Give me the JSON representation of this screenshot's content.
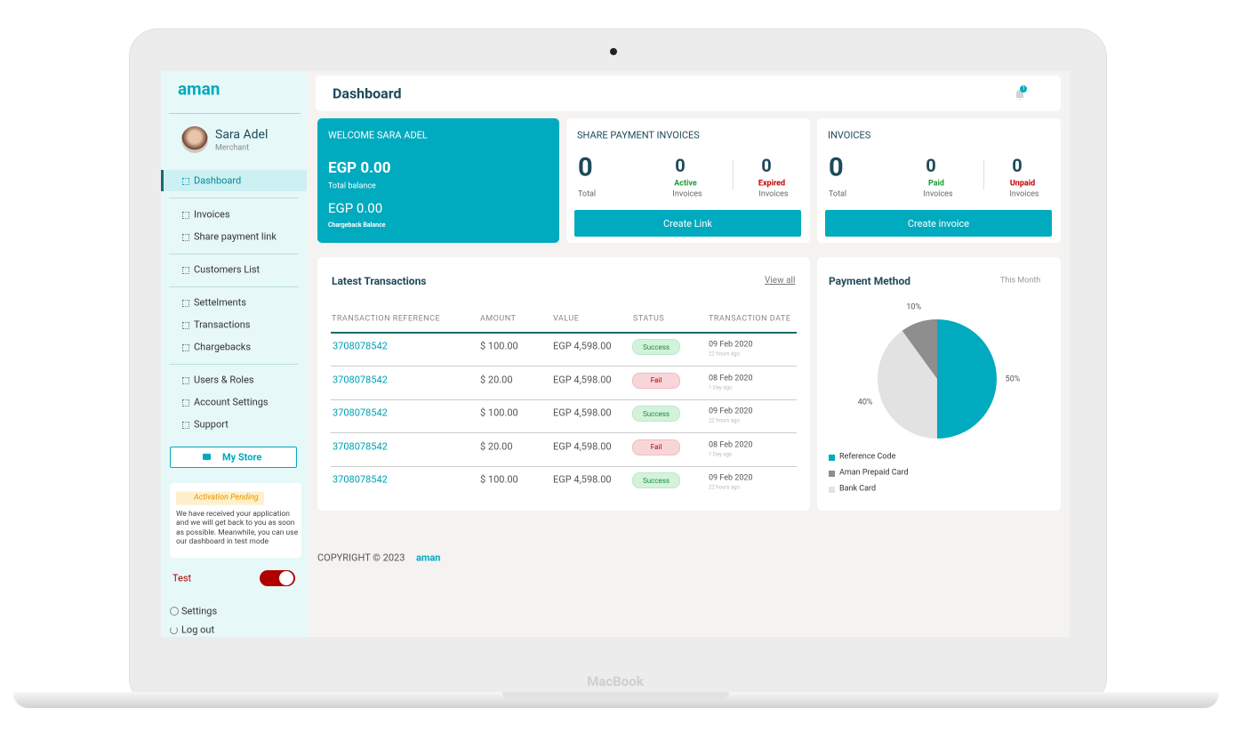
{
  "device_label": "MacBook",
  "sidebar": {
    "logo": "aman",
    "user": {
      "name": "Sara Adel",
      "role": "Merchant"
    },
    "menu": [
      [
        "Dashboard"
      ],
      [
        "Invoices",
        "Share payment link"
      ],
      [
        "Customers List"
      ],
      [
        "Settelments",
        "Transactions",
        "Chargebacks"
      ],
      [
        "Users & Roles",
        "Account Settings",
        "Support"
      ]
    ],
    "my_store": "My Store",
    "activation": {
      "badge": "Activation  Pending",
      "message": "We have received your application and we will get back to you as soon as possible. Meanwhile, you can use our dashboard in test mode"
    },
    "test_toggle": "Test",
    "bottom_links": [
      "Settings",
      "Log out"
    ]
  },
  "header": {
    "title": "Dashboard",
    "notifications": "1"
  },
  "welcome": {
    "title": "WELCOME SARA ADEL",
    "total_balance": "EGP 0.00",
    "total_label": "Total balance",
    "chargeback_balance": "EGP 0.00",
    "chargeback_label": "Chargeback Balance"
  },
  "cards": [
    {
      "title": "SHARE PAYMENT INVOICES",
      "total": {
        "value": "0",
        "label": "Total"
      },
      "stats": [
        {
          "value": "0",
          "status": "Active",
          "label": "Invoices"
        },
        {
          "value": "0",
          "status": "Expired",
          "label": "Invoices"
        }
      ],
      "button": "Create Link"
    },
    {
      "title": "INVOICES",
      "total": {
        "value": "0",
        "label": "Total"
      },
      "stats": [
        {
          "value": "0",
          "status": "Paid",
          "label": "Invoices"
        },
        {
          "value": "0",
          "status": "Unpaid",
          "label": "Invoices"
        }
      ],
      "button": "Create invoice"
    }
  ],
  "transactions": {
    "title": "Latest Transactions",
    "view_all": "View all",
    "columns": [
      "TRANSACTION REFERENCE",
      "AMOUNT",
      "VALUE",
      "STATUS",
      "TRANSACTION DATE"
    ],
    "rows": [
      [
        "3708078542",
        "$ 100.00",
        "EGP 4,598.00",
        "Success",
        "09 Feb 2020",
        "22 hours ago"
      ],
      [
        "3708078542",
        "$ 20.00",
        "EGP 4,598.00",
        "Fail",
        "08 Feb 2020",
        "1 Day ago"
      ],
      [
        "3708078542",
        "$ 100.00",
        "EGP 4,598.00",
        "Success",
        "09 Feb 2020",
        "22 hours ago"
      ],
      [
        "3708078542",
        "$ 20.00",
        "EGP 4,598.00",
        "Fail",
        "08 Feb 2020",
        "1 Day ago"
      ],
      [
        "3708078542",
        "$ 100.00",
        "EGP 4,598.00",
        "Success",
        "09 Feb 2020",
        "22 hours ago"
      ]
    ]
  },
  "chart_data": {
    "type": "pie",
    "title": "Payment Method",
    "period": "This Month",
    "categories": [
      "Reference Code",
      "Aman Prepaid Card",
      "Bank Card"
    ],
    "values": [
      50,
      10,
      40
    ],
    "value_labels": [
      "50%",
      "10%",
      "40%"
    ],
    "colors": [
      "#00aabf",
      "#8e8e8e",
      "#e2e2e2"
    ]
  },
  "footer": {
    "copyright": "COPYRIGHT © 2023",
    "logo": "aman"
  }
}
